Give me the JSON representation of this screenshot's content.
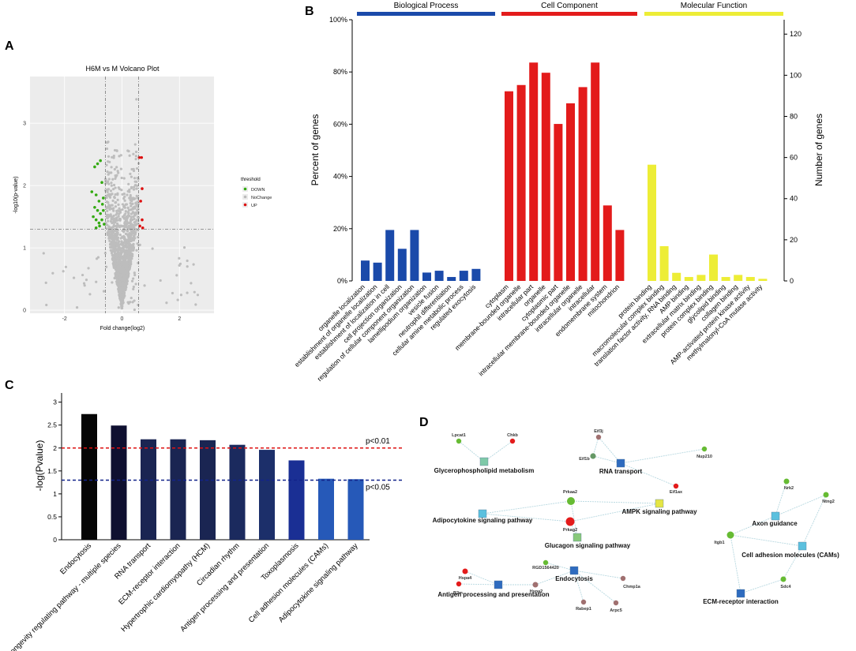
{
  "panel_labels": [
    "A",
    "B",
    "C",
    "D"
  ],
  "chart_data": [
    {
      "id": "A",
      "type": "scatter",
      "title": "H6M vs M Volcano Plot",
      "xlabel": "Fold change(log2)",
      "ylabel": "-log10(p-value)",
      "xlim": [
        -3.2,
        3.2
      ],
      "ylim": [
        -0.05,
        3.75
      ],
      "x_ticks": [
        -2,
        0,
        2
      ],
      "y_ticks": [
        0,
        1,
        2,
        3
      ],
      "thresholds": {
        "x": [
          -0.58,
          0.58
        ],
        "y": 1.3
      },
      "legend": {
        "title": "threshold",
        "position": "right",
        "entries": [
          {
            "label": "DOWN",
            "color": "#33aa11"
          },
          {
            "label": "NoChange",
            "color": "#bbbbbb"
          },
          {
            "label": "UP",
            "color": "#dd1111"
          }
        ]
      },
      "series": [
        {
          "name": "DOWN",
          "color": "#33aa11",
          "points": [
            [
              -0.85,
              2.35
            ],
            [
              -0.75,
              2.4
            ],
            [
              -0.95,
              2.3
            ],
            [
              -1.05,
              1.9
            ],
            [
              -0.7,
              2.05
            ],
            [
              -0.9,
              1.85
            ],
            [
              -0.8,
              1.75
            ],
            [
              -0.65,
              1.8
            ],
            [
              -0.95,
              1.65
            ],
            [
              -0.85,
              1.6
            ],
            [
              -0.75,
              1.55
            ],
            [
              -0.65,
              1.6
            ],
            [
              -1.0,
              1.5
            ],
            [
              -0.9,
              1.45
            ],
            [
              -0.8,
              1.4
            ],
            [
              -0.7,
              1.45
            ],
            [
              -0.9,
              1.32
            ],
            [
              -0.78,
              1.35
            ],
            [
              -0.62,
              1.38
            ],
            [
              -0.68,
              1.7
            ]
          ]
        },
        {
          "name": "UP",
          "color": "#dd1111",
          "points": [
            [
              0.6,
              2.45
            ],
            [
              0.68,
              2.45
            ],
            [
              0.7,
              1.95
            ],
            [
              0.65,
              1.75
            ],
            [
              0.7,
              1.45
            ],
            [
              0.62,
              1.35
            ],
            [
              0.72,
              1.32
            ]
          ]
        }
      ]
    },
    {
      "id": "B",
      "type": "bar",
      "ylabel": "Percent of genes",
      "y2label": "Number of genes",
      "ylim": [
        0,
        100
      ],
      "y_ticks": [
        "0%",
        "20%",
        "40%",
        "60%",
        "80%",
        "100%"
      ],
      "y2_ticks": [
        0,
        20,
        40,
        60,
        80,
        100,
        120
      ],
      "y2lim": [
        0,
        127
      ],
      "groups": [
        {
          "name": "Biological Process",
          "color": "#1a4aaa",
          "categories": [
            "organelle localization",
            "establishment of organelle localization",
            "establishment of localization in cell",
            "cell projection organization",
            "regulation of cellular component organization",
            "lamellipodium organization",
            "vesicle fusion",
            "neutrophil differentiation",
            "cellular amine metabolic process",
            "regulated exocytosis"
          ],
          "values": [
            7.8,
            7,
            19.5,
            12.3,
            19.5,
            3.2,
            3.9,
            1.5,
            3.9,
            4.6
          ]
        },
        {
          "name": "Cell Component",
          "color": "#e31b1b",
          "categories": [
            "cytoplasm",
            "membrane-bounded organelle",
            "intracellular part",
            "organelle",
            "cytoplasmic part",
            "intracellular membrane-bounded organelle",
            "intracellular organelle",
            "intracellular",
            "endomembrane system",
            "mitochondrion"
          ],
          "values": [
            72.6,
            75,
            83.6,
            79.7,
            60.1,
            68,
            74.2,
            83.6,
            28.9,
            19.5
          ]
        },
        {
          "name": "Molecular Function",
          "color": "#eded36",
          "categories": [
            "protein binding",
            "macromolecular complex binding",
            "translation factor activity, RNA binding",
            "AMP binding",
            "extracellular matrix binding",
            "protein complex binding",
            "glycolipid binding",
            "collagen binding",
            "AMP-activated protein kinase activity",
            "methylmalonyl-CoA mutase activity"
          ],
          "values": [
            44.5,
            13.3,
            3.1,
            1.5,
            2.3,
            10.1,
            1.5,
            2.3,
            1.5,
            0.8
          ]
        }
      ]
    },
    {
      "id": "C",
      "type": "bar",
      "ylabel": "-log(Pvalue)",
      "ylim": [
        0,
        3.2
      ],
      "y_ticks": [
        0,
        0.5,
        1,
        1.5,
        2,
        2.5,
        3
      ],
      "y_tick_labels": [
        "0",
        "0.5",
        "1",
        "1.5",
        "2",
        "2.5",
        "3"
      ],
      "categories": [
        "Endocytosis",
        "Longevity regulating pathway - multiple species",
        "RNA transport",
        "ECM-receptor interaction",
        "Hypertrophic cardiomyopathy (HCM)",
        "Circadian rhythm",
        "Antigen processing and presentation",
        "Toxoplasmosis",
        "Cell adhesion molecules (CAMs)",
        "Adipocytokine signaling pathway"
      ],
      "values": [
        2.74,
        2.49,
        2.19,
        2.19,
        2.17,
        2.07,
        1.96,
        1.73,
        1.33,
        1.32
      ],
      "colors": [
        "#050505",
        "#0f1030",
        "#1a2552",
        "#1a2552",
        "#1a2552",
        "#1b2a5e",
        "#1c2f6a",
        "#1a2f94",
        "#2659b8",
        "#2659b8"
      ],
      "reference_lines": [
        {
          "value": 2.0,
          "label": "p<0.01",
          "color": "#dd1111"
        },
        {
          "value": 1.3,
          "label": "p<0.05",
          "color": "#12238a"
        }
      ]
    },
    {
      "id": "D",
      "type": "network",
      "pathways": [
        {
          "label": "Glycerophospholipid metabolism",
          "color": "#7fc9a8"
        },
        {
          "label": "RNA transport",
          "color": "#2e6bbf"
        },
        {
          "label": "Adipocytokine signaling pathway",
          "color": "#5bc0de"
        },
        {
          "label": "AMPK signaling pathway",
          "color": "#e5e544"
        },
        {
          "label": "Glucagon signaling pathway",
          "color": "#88c97a"
        },
        {
          "label": "Endocytosis",
          "color": "#2e6bbf"
        },
        {
          "label": "Antigen processing and presentation",
          "color": "#2e6bbf"
        },
        {
          "label": "Axon guidance",
          "color": "#5bc0de"
        },
        {
          "label": "Cell adhesion molecules (CAMs)",
          "color": "#5bc0de"
        },
        {
          "label": "ECM-receptor interaction",
          "color": "#2e6bbf"
        }
      ],
      "genes": [
        {
          "label": "Lpcat1",
          "color": "#66bb33"
        },
        {
          "label": "Chkb",
          "color": "#e31b1b"
        },
        {
          "label": "Eif3j",
          "color": "#a07070"
        },
        {
          "label": "Eif1b",
          "color": "#669966"
        },
        {
          "label": "Nup210",
          "color": "#66bb33"
        },
        {
          "label": "Eif1ax",
          "color": "#e31b1b"
        },
        {
          "label": "Prkaa2",
          "color": "#66bb33"
        },
        {
          "label": "Prkag2",
          "color": "#e31b1b"
        },
        {
          "label": "RGD1564420",
          "color": "#66bb33"
        },
        {
          "label": "Hspa4",
          "color": "#e31b1b"
        },
        {
          "label": "B2m",
          "color": "#e31b1b"
        },
        {
          "label": "Hspa2",
          "color": "#a07070"
        },
        {
          "label": "Chmp1a",
          "color": "#a07070"
        },
        {
          "label": "Rabep1",
          "color": "#a07070"
        },
        {
          "label": "Arpc5",
          "color": "#a07070"
        },
        {
          "label": "Nrk2",
          "color": "#66bb33"
        },
        {
          "label": "Ntng2",
          "color": "#66bb33"
        },
        {
          "label": "Itgb1",
          "color": "#66bb33"
        },
        {
          "label": "Sdc4",
          "color": "#66bb33"
        }
      ],
      "edges": [
        [
          "Lpcat1",
          "Glycerophospholipid metabolism"
        ],
        [
          "Chkb",
          "Glycerophospholipid metabolism"
        ],
        [
          "Eif3j",
          "RNA transport"
        ],
        [
          "Eif1b",
          "RNA transport"
        ],
        [
          "Nup210",
          "RNA transport"
        ],
        [
          "Eif1ax",
          "RNA transport"
        ],
        [
          "Eif3j",
          "Eif1b"
        ],
        [
          "Prkaa2",
          "Adipocytokine signaling pathway"
        ],
        [
          "Prkaa2",
          "AMPK signaling pathway"
        ],
        [
          "Prkaa2",
          "Glucagon signaling pathway"
        ],
        [
          "Prkag2",
          "Adipocytokine signaling pathway"
        ],
        [
          "Prkag2",
          "AMPK signaling pathway"
        ],
        [
          "Prkag2",
          "Glucagon signaling pathway"
        ],
        [
          "RGD1564420",
          "Endocytosis"
        ],
        [
          "Hspa2",
          "Endocytosis"
        ],
        [
          "Chmp1a",
          "Endocytosis"
        ],
        [
          "Rabep1",
          "Endocytosis"
        ],
        [
          "Arpc5",
          "Endocytosis"
        ],
        [
          "Hspa4",
          "Antigen processing and presentation"
        ],
        [
          "B2m",
          "Antigen processing and presentation"
        ],
        [
          "Hspa2",
          "Antigen processing and presentation"
        ],
        [
          "Nrk2",
          "Axon guidance"
        ],
        [
          "Itgb1",
          "Axon guidance"
        ],
        [
          "Ntng2",
          "Axon guidance"
        ],
        [
          "Itgb1",
          "Cell adhesion molecules (CAMs)"
        ],
        [
          "Sdc4",
          "Cell adhesion molecules (CAMs)"
        ],
        [
          "Ntng2",
          "Cell adhesion molecules (CAMs)"
        ],
        [
          "Itgb1",
          "ECM-receptor interaction"
        ],
        [
          "Sdc4",
          "ECM-receptor interaction"
        ]
      ]
    }
  ]
}
